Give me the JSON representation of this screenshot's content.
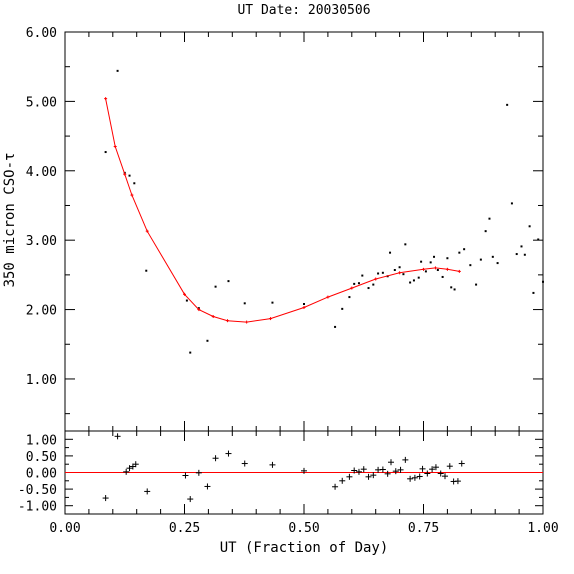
{
  "chart_data": {
    "type": "scatter",
    "title": "UT Date: 20030506",
    "xlabel": "UT (Fraction of Day)",
    "ylabel": "350 micron CSO-τ",
    "xlim": [
      0.0,
      1.0
    ],
    "x_ticks": [
      "0.00",
      "0.25",
      "0.50",
      "0.75",
      "1.00"
    ],
    "colors": {
      "points": "#000000",
      "fit": "#ff0000"
    },
    "top_panel": {
      "ylim": [
        0.25,
        6.0
      ],
      "y_ticks": [
        "1.00",
        "2.00",
        "3.00",
        "4.00",
        "5.00",
        "6.00"
      ],
      "points": [
        [
          0.085,
          4.27
        ],
        [
          0.11,
          5.44
        ],
        [
          0.125,
          3.97
        ],
        [
          0.135,
          3.93
        ],
        [
          0.145,
          3.82
        ],
        [
          0.17,
          2.56
        ],
        [
          0.255,
          2.13
        ],
        [
          0.262,
          1.38
        ],
        [
          0.28,
          2.02
        ],
        [
          0.298,
          1.55
        ],
        [
          0.315,
          2.33
        ],
        [
          0.342,
          2.41
        ],
        [
          0.376,
          2.09
        ],
        [
          0.434,
          2.1
        ],
        [
          0.5,
          2.08
        ],
        [
          0.565,
          1.75
        ],
        [
          0.58,
          2.01
        ],
        [
          0.595,
          2.18
        ],
        [
          0.605,
          2.37
        ],
        [
          0.615,
          2.38
        ],
        [
          0.622,
          2.49
        ],
        [
          0.635,
          2.31
        ],
        [
          0.645,
          2.36
        ],
        [
          0.655,
          2.52
        ],
        [
          0.665,
          2.53
        ],
        [
          0.675,
          2.48
        ],
        [
          0.68,
          2.82
        ],
        [
          0.69,
          2.57
        ],
        [
          0.7,
          2.61
        ],
        [
          0.708,
          2.51
        ],
        [
          0.712,
          2.94
        ],
        [
          0.722,
          2.39
        ],
        [
          0.73,
          2.42
        ],
        [
          0.74,
          2.46
        ],
        [
          0.745,
          2.69
        ],
        [
          0.755,
          2.55
        ],
        [
          0.765,
          2.68
        ],
        [
          0.772,
          2.76
        ],
        [
          0.78,
          2.57
        ],
        [
          0.79,
          2.47
        ],
        [
          0.8,
          2.74
        ],
        [
          0.808,
          2.32
        ],
        [
          0.815,
          2.29
        ],
        [
          0.825,
          2.82
        ],
        [
          0.835,
          2.87
        ],
        [
          0.848,
          2.64
        ],
        [
          0.86,
          2.36
        ],
        [
          0.87,
          2.72
        ],
        [
          0.88,
          3.13
        ],
        [
          0.888,
          3.31
        ],
        [
          0.895,
          2.76
        ],
        [
          0.905,
          2.67
        ],
        [
          0.925,
          4.95
        ],
        [
          0.935,
          3.53
        ],
        [
          0.945,
          2.8
        ],
        [
          0.955,
          2.91
        ],
        [
          0.962,
          2.79
        ],
        [
          0.972,
          3.2
        ],
        [
          0.98,
          2.24
        ],
        [
          0.99,
          3.01
        ],
        [
          1.0,
          2.4
        ]
      ],
      "fit": [
        [
          0.085,
          5.04
        ],
        [
          0.105,
          4.35
        ],
        [
          0.125,
          3.95
        ],
        [
          0.14,
          3.65
        ],
        [
          0.172,
          3.13
        ],
        [
          0.25,
          2.22
        ],
        [
          0.28,
          2.0
        ],
        [
          0.31,
          1.9
        ],
        [
          0.34,
          1.84
        ],
        [
          0.38,
          1.82
        ],
        [
          0.43,
          1.87
        ],
        [
          0.5,
          2.03
        ],
        [
          0.55,
          2.18
        ],
        [
          0.6,
          2.31
        ],
        [
          0.65,
          2.44
        ],
        [
          0.7,
          2.53
        ],
        [
          0.75,
          2.58
        ],
        [
          0.775,
          2.6
        ],
        [
          0.8,
          2.58
        ],
        [
          0.825,
          2.55
        ]
      ]
    },
    "bottom_panel": {
      "ylim": [
        -1.25,
        1.25
      ],
      "y_ticks": [
        "1.00",
        "0.50",
        "0.00",
        "-0.50",
        "-1.00"
      ],
      "zero_line": 0.0,
      "residuals": [
        [
          0.085,
          -0.77
        ],
        [
          0.11,
          1.09
        ],
        [
          0.128,
          0.02
        ],
        [
          0.135,
          0.13
        ],
        [
          0.142,
          0.18
        ],
        [
          0.148,
          0.25
        ],
        [
          0.172,
          -0.57
        ],
        [
          0.252,
          -0.09
        ],
        [
          0.262,
          -0.8
        ],
        [
          0.28,
          -0.01
        ],
        [
          0.298,
          -0.42
        ],
        [
          0.315,
          0.43
        ],
        [
          0.342,
          0.57
        ],
        [
          0.376,
          0.27
        ],
        [
          0.434,
          0.23
        ],
        [
          0.5,
          0.05
        ],
        [
          0.565,
          -0.43
        ],
        [
          0.58,
          -0.25
        ],
        [
          0.595,
          -0.13
        ],
        [
          0.605,
          0.06
        ],
        [
          0.615,
          0.02
        ],
        [
          0.625,
          0.1
        ],
        [
          0.635,
          -0.13
        ],
        [
          0.645,
          -0.08
        ],
        [
          0.655,
          0.08
        ],
        [
          0.665,
          0.09
        ],
        [
          0.675,
          -0.04
        ],
        [
          0.682,
          0.31
        ],
        [
          0.692,
          0.04
        ],
        [
          0.702,
          0.08
        ],
        [
          0.712,
          0.38
        ],
        [
          0.722,
          -0.19
        ],
        [
          0.732,
          -0.16
        ],
        [
          0.742,
          -0.12
        ],
        [
          0.748,
          0.11
        ],
        [
          0.758,
          -0.03
        ],
        [
          0.768,
          0.1
        ],
        [
          0.776,
          0.16
        ],
        [
          0.786,
          -0.03
        ],
        [
          0.795,
          -0.11
        ],
        [
          0.805,
          0.19
        ],
        [
          0.813,
          -0.27
        ],
        [
          0.822,
          -0.26
        ],
        [
          0.83,
          0.27
        ]
      ]
    }
  }
}
